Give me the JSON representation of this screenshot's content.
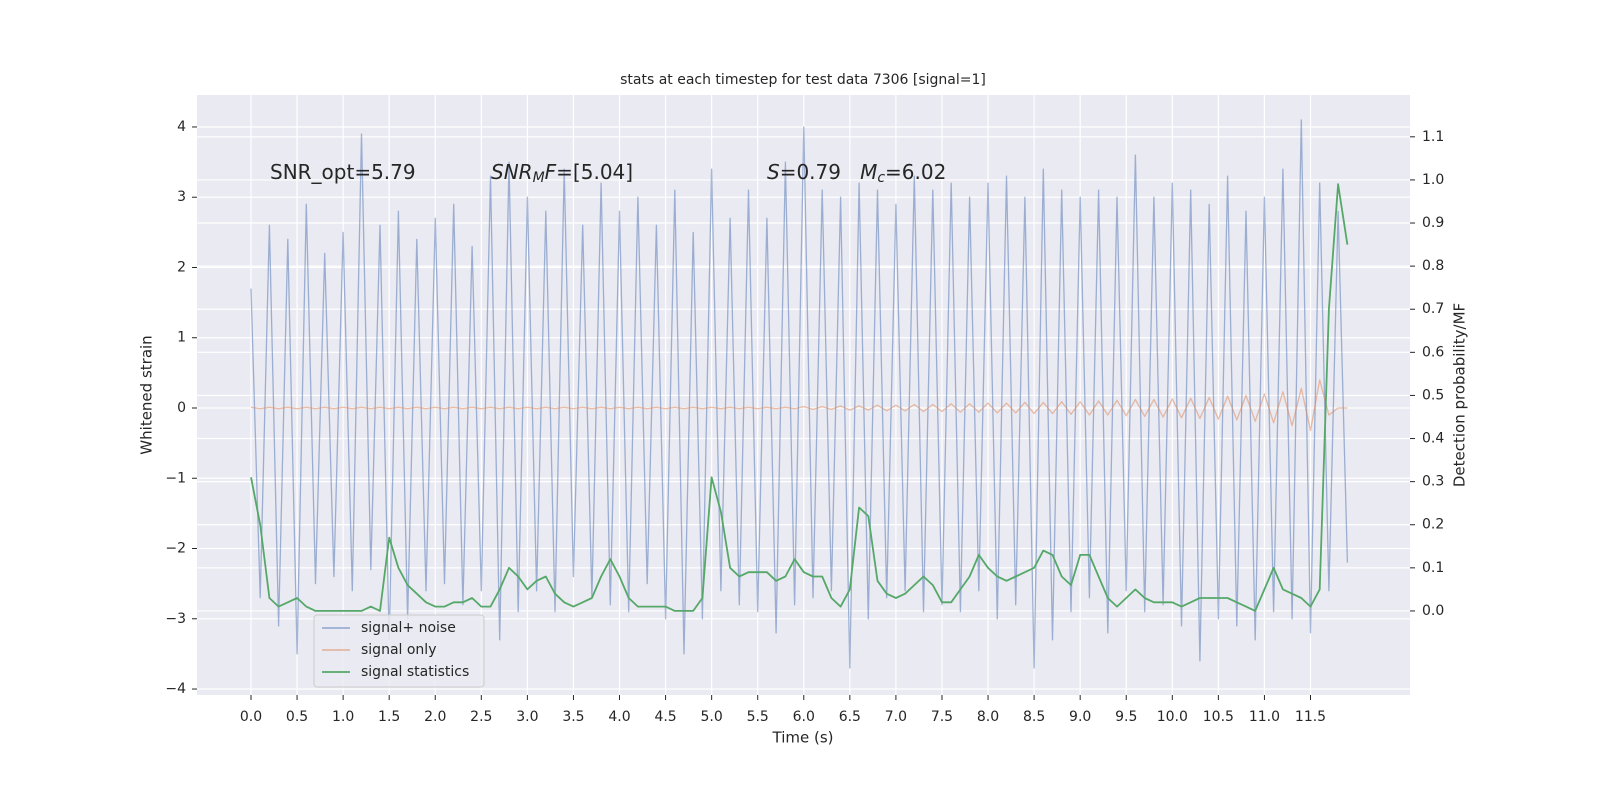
{
  "chart_data": {
    "type": "line",
    "title": "stats at each timestep for test data 7306 [signal=1]",
    "xlabel": "Time (s)",
    "ylabel": "Whitened strain",
    "y2label": "Detection probability/MF",
    "annotations": [
      {
        "segments": [
          {
            "text": "SNR_opt=5.79"
          }
        ]
      },
      {
        "segments": [
          {
            "text": "SNR",
            "italic": true
          },
          {
            "text": "M",
            "italic": true,
            "sub": true
          },
          {
            "text": "F",
            "italic": true
          },
          {
            "text": "=[5.04]"
          }
        ]
      },
      {
        "segments": [
          {
            "text": "S",
            "italic": true
          },
          {
            "text": "=0.79   "
          },
          {
            "text": "M",
            "italic": true
          },
          {
            "text": "c",
            "italic": true,
            "sub": true
          },
          {
            "text": "=6.02"
          }
        ]
      }
    ],
    "x": [
      0.0,
      0.1,
      0.2,
      0.3,
      0.4,
      0.5,
      0.6,
      0.7,
      0.8,
      0.9,
      1.0,
      1.1,
      1.2,
      1.3,
      1.4,
      1.5,
      1.6,
      1.7,
      1.8,
      1.9,
      2.0,
      2.1,
      2.2,
      2.3,
      2.4,
      2.5,
      2.6,
      2.7,
      2.8,
      2.9,
      3.0,
      3.1,
      3.2,
      3.3,
      3.4,
      3.5,
      3.6,
      3.7,
      3.8,
      3.9,
      4.0,
      4.1,
      4.2,
      4.3,
      4.4,
      4.5,
      4.6,
      4.7,
      4.8,
      4.9,
      5.0,
      5.1,
      5.2,
      5.3,
      5.4,
      5.5,
      5.6,
      5.7,
      5.8,
      5.9,
      6.0,
      6.1,
      6.2,
      6.3,
      6.4,
      6.5,
      6.6,
      6.7,
      6.8,
      6.9,
      7.0,
      7.1,
      7.2,
      7.3,
      7.4,
      7.5,
      7.6,
      7.7,
      7.8,
      7.9,
      8.0,
      8.1,
      8.2,
      8.3,
      8.4,
      8.5,
      8.6,
      8.7,
      8.8,
      8.9,
      9.0,
      9.1,
      9.2,
      9.3,
      9.4,
      9.5,
      9.6,
      9.7,
      9.8,
      9.9,
      10.0,
      10.1,
      10.2,
      10.3,
      10.4,
      10.5,
      10.6,
      10.7,
      10.8,
      10.9,
      11.0,
      11.1,
      11.2,
      11.3,
      11.4,
      11.5,
      11.6,
      11.7,
      11.8,
      11.9
    ],
    "series": [
      {
        "name": "signal+ noise",
        "color": "#4c72b0",
        "values": [
          1.7,
          -2.7,
          2.6,
          -3.1,
          2.4,
          -3.5,
          2.9,
          -2.5,
          2.2,
          -2.4,
          2.5,
          -2.6,
          3.9,
          -2.3,
          2.6,
          -3.3,
          2.8,
          -3.0,
          2.4,
          -2.6,
          2.7,
          -2.5,
          2.9,
          -2.8,
          2.3,
          -2.6,
          3.3,
          -3.3,
          3.5,
          -2.9,
          3.0,
          -2.6,
          2.8,
          -2.9,
          3.4,
          -2.4,
          2.6,
          -2.7,
          3.2,
          -2.8,
          2.8,
          -2.9,
          3.0,
          -2.5,
          2.6,
          -3.0,
          3.1,
          -3.5,
          2.5,
          -3.0,
          3.4,
          -2.6,
          2.7,
          -2.8,
          3.1,
          -2.9,
          2.7,
          -3.2,
          3.5,
          -2.8,
          4.0,
          -2.7,
          3.1,
          -2.6,
          3.0,
          -3.7,
          3.2,
          -3.0,
          3.1,
          -2.7,
          2.9,
          -2.6,
          3.3,
          -2.9,
          3.1,
          -2.8,
          3.2,
          -2.9,
          3.0,
          -2.6,
          3.2,
          -3.0,
          3.3,
          -2.8,
          3.0,
          -3.7,
          3.4,
          -3.3,
          3.1,
          -2.9,
          3.0,
          -2.7,
          3.1,
          -3.2,
          3.0,
          -2.6,
          3.6,
          -2.9,
          3.0,
          -2.8,
          3.2,
          -3.1,
          3.1,
          -3.6,
          2.9,
          -3.0,
          3.3,
          -3.1,
          2.8,
          -3.3,
          3.0,
          -2.9,
          3.4,
          -3.0,
          4.1,
          -3.2,
          3.2,
          -2.6,
          2.8,
          -2.2
        ]
      },
      {
        "name": "signal only",
        "color": "#dd8452",
        "values": [
          0.01,
          -0.01,
          0.01,
          -0.01,
          0.01,
          -0.01,
          0.01,
          -0.01,
          0.01,
          -0.01,
          0.01,
          -0.01,
          0.01,
          -0.01,
          0.01,
          -0.01,
          0.01,
          -0.01,
          0.01,
          -0.01,
          0.01,
          -0.01,
          0.01,
          -0.01,
          0.01,
          -0.01,
          0.01,
          -0.01,
          0.01,
          -0.01,
          0.01,
          -0.01,
          0.01,
          -0.01,
          0.01,
          -0.01,
          0.01,
          -0.01,
          0.01,
          -0.01,
          0.01,
          -0.01,
          0.01,
          -0.01,
          0.01,
          -0.01,
          0.01,
          -0.01,
          0.01,
          -0.01,
          0.01,
          -0.01,
          0.01,
          -0.01,
          0.01,
          -0.01,
          0.01,
          -0.01,
          0.01,
          -0.01,
          0.02,
          -0.02,
          0.02,
          -0.02,
          0.03,
          -0.03,
          0.03,
          -0.03,
          0.04,
          -0.04,
          0.04,
          -0.04,
          0.05,
          -0.05,
          0.05,
          -0.05,
          0.06,
          -0.06,
          0.06,
          -0.06,
          0.07,
          -0.07,
          0.07,
          -0.07,
          0.08,
          -0.08,
          0.08,
          -0.08,
          0.09,
          -0.09,
          0.09,
          -0.1,
          0.1,
          -0.1,
          0.11,
          -0.11,
          0.12,
          -0.12,
          0.12,
          -0.13,
          0.13,
          -0.14,
          0.14,
          -0.15,
          0.15,
          -0.16,
          0.17,
          -0.17,
          0.18,
          -0.19,
          0.2,
          -0.21,
          0.23,
          -0.25,
          0.28,
          -0.32,
          0.4,
          -0.1,
          0.0,
          0.0
        ]
      },
      {
        "name": "signal statistics",
        "color": "#55a868",
        "axis": "y2",
        "values": [
          0.31,
          0.2,
          0.03,
          0.01,
          0.02,
          0.03,
          0.01,
          0.0,
          0.0,
          0.0,
          0.0,
          0.0,
          0.0,
          0.01,
          0.0,
          0.17,
          0.1,
          0.06,
          0.04,
          0.02,
          0.01,
          0.01,
          0.02,
          0.02,
          0.03,
          0.01,
          0.01,
          0.05,
          0.1,
          0.08,
          0.05,
          0.07,
          0.08,
          0.04,
          0.02,
          0.01,
          0.02,
          0.03,
          0.08,
          0.12,
          0.08,
          0.03,
          0.01,
          0.01,
          0.01,
          0.01,
          0.0,
          0.0,
          0.0,
          0.03,
          0.31,
          0.23,
          0.1,
          0.08,
          0.09,
          0.09,
          0.09,
          0.07,
          0.08,
          0.12,
          0.09,
          0.08,
          0.08,
          0.03,
          0.01,
          0.05,
          0.24,
          0.22,
          0.07,
          0.04,
          0.03,
          0.04,
          0.06,
          0.08,
          0.06,
          0.02,
          0.02,
          0.05,
          0.08,
          0.13,
          0.1,
          0.08,
          0.07,
          0.08,
          0.09,
          0.1,
          0.14,
          0.13,
          0.08,
          0.06,
          0.13,
          0.13,
          0.08,
          0.03,
          0.01,
          0.03,
          0.05,
          0.03,
          0.02,
          0.02,
          0.02,
          0.01,
          0.02,
          0.03,
          0.03,
          0.03,
          0.03,
          0.02,
          0.01,
          0.0,
          0.05,
          0.1,
          0.05,
          0.04,
          0.03,
          0.01,
          0.05,
          0.7,
          0.99,
          0.85
        ]
      }
    ],
    "xlim": [
      -0.586,
      12.58
    ],
    "ylim": [
      -4.085,
      4.455
    ],
    "y2lim": [
      -0.195,
      1.197
    ],
    "xticks": [
      {
        "value": 0,
        "label": "0.0"
      },
      {
        "value": 0.5,
        "label": "0.5"
      },
      {
        "value": 1,
        "label": "1.0"
      },
      {
        "value": 1.5,
        "label": "1.5"
      },
      {
        "value": 2,
        "label": "2.0"
      },
      {
        "value": 2.5,
        "label": "2.5"
      },
      {
        "value": 3,
        "label": "3.0"
      },
      {
        "value": 3.5,
        "label": "3.5"
      },
      {
        "value": 4,
        "label": "4.0"
      },
      {
        "value": 4.5,
        "label": "4.5"
      },
      {
        "value": 5,
        "label": "5.0"
      },
      {
        "value": 5.5,
        "label": "5.5"
      },
      {
        "value": 6,
        "label": "6.0"
      },
      {
        "value": 6.5,
        "label": "6.5"
      },
      {
        "value": 7,
        "label": "7.0"
      },
      {
        "value": 7.5,
        "label": "7.5"
      },
      {
        "value": 8,
        "label": "8.0"
      },
      {
        "value": 8.5,
        "label": "8.5"
      },
      {
        "value": 9,
        "label": "9.0"
      },
      {
        "value": 9.5,
        "label": "9.5"
      },
      {
        "value": 10,
        "label": "10.0"
      },
      {
        "value": 10.5,
        "label": "10.5"
      },
      {
        "value": 11,
        "label": "11.0"
      },
      {
        "value": 11.5,
        "label": "11.5"
      }
    ],
    "yticks": [
      4,
      3,
      2,
      1,
      0,
      {
        "value": -1,
        "label": "−1"
      },
      {
        "value": -2,
        "label": "−2"
      },
      {
        "value": -3,
        "label": "−3"
      },
      {
        "value": -4,
        "label": "−4"
      }
    ],
    "y2ticks": [
      {
        "value": 0,
        "label": "0.0"
      },
      {
        "value": 0.1,
        "label": "0.1"
      },
      {
        "value": 0.2,
        "label": "0.2"
      },
      {
        "value": 0.3,
        "label": "0.3"
      },
      {
        "value": 0.4,
        "label": "0.4"
      },
      {
        "value": 0.5,
        "label": "0.5"
      },
      {
        "value": 0.6,
        "label": "0.6"
      },
      {
        "value": 0.7,
        "label": "0.7"
      },
      {
        "value": 0.8,
        "label": "0.8"
      },
      {
        "value": 0.9,
        "label": "0.9"
      },
      {
        "value": 1,
        "label": "1.0"
      },
      {
        "value": 1.1,
        "label": "1.1"
      }
    ],
    "grid": true,
    "legend": "lower left"
  }
}
